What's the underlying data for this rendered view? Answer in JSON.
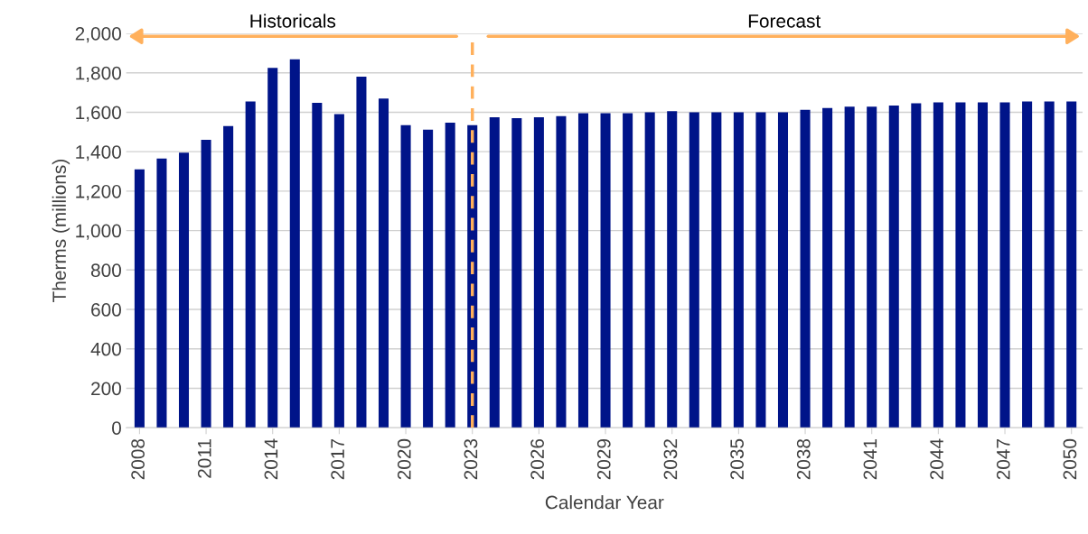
{
  "chart_data": {
    "type": "bar",
    "xlabel": "Calendar Year",
    "ylabel": "Therms (millions)",
    "categories": [
      "2008",
      null,
      null,
      "2011",
      null,
      null,
      "2014",
      null,
      null,
      "2017",
      null,
      null,
      "2020",
      null,
      null,
      "2023",
      null,
      null,
      "2026",
      null,
      null,
      "2029",
      null,
      null,
      "2032",
      null,
      null,
      "2035",
      null,
      null,
      "2038",
      null,
      null,
      "2041",
      null,
      null,
      "2044",
      null,
      null,
      "2047",
      null,
      null,
      "2050"
    ],
    "values": [
      1310,
      1365,
      1395,
      1460,
      1530,
      1655,
      1825,
      1868,
      1648,
      1590,
      1780,
      1670,
      1535,
      1512,
      1547,
      1535,
      1575,
      1570,
      1575,
      1580,
      1595,
      1595,
      1595,
      1600,
      1605,
      1600,
      1600,
      1600,
      1600,
      1600,
      1612,
      1622,
      1628,
      1628,
      1634,
      1645,
      1650,
      1650,
      1650,
      1650,
      1655,
      1655,
      1655
    ],
    "color": "#001489",
    "ylim": [
      0,
      2000
    ],
    "yticks": [
      {
        "value": 0,
        "label": "0"
      },
      {
        "value": 200,
        "label": "200"
      },
      {
        "value": 400,
        "label": "400"
      },
      {
        "value": 600,
        "label": "600"
      },
      {
        "value": 800,
        "label": "800"
      },
      {
        "value": 1000,
        "label": "1,000"
      },
      {
        "value": 1200,
        "label": "1,200"
      },
      {
        "value": 1400,
        "label": "1,400"
      },
      {
        "value": 1600,
        "label": "1,600"
      },
      {
        "value": 1800,
        "label": "1,800"
      },
      {
        "value": 2000,
        "label": "2,000"
      }
    ],
    "grid": "y",
    "ref_lines": [
      {
        "axis": "x",
        "value": "2023",
        "color": "#ffb05c",
        "line_style": "dashed"
      }
    ],
    "annotations": [
      "Historicals",
      "Forecast"
    ]
  }
}
